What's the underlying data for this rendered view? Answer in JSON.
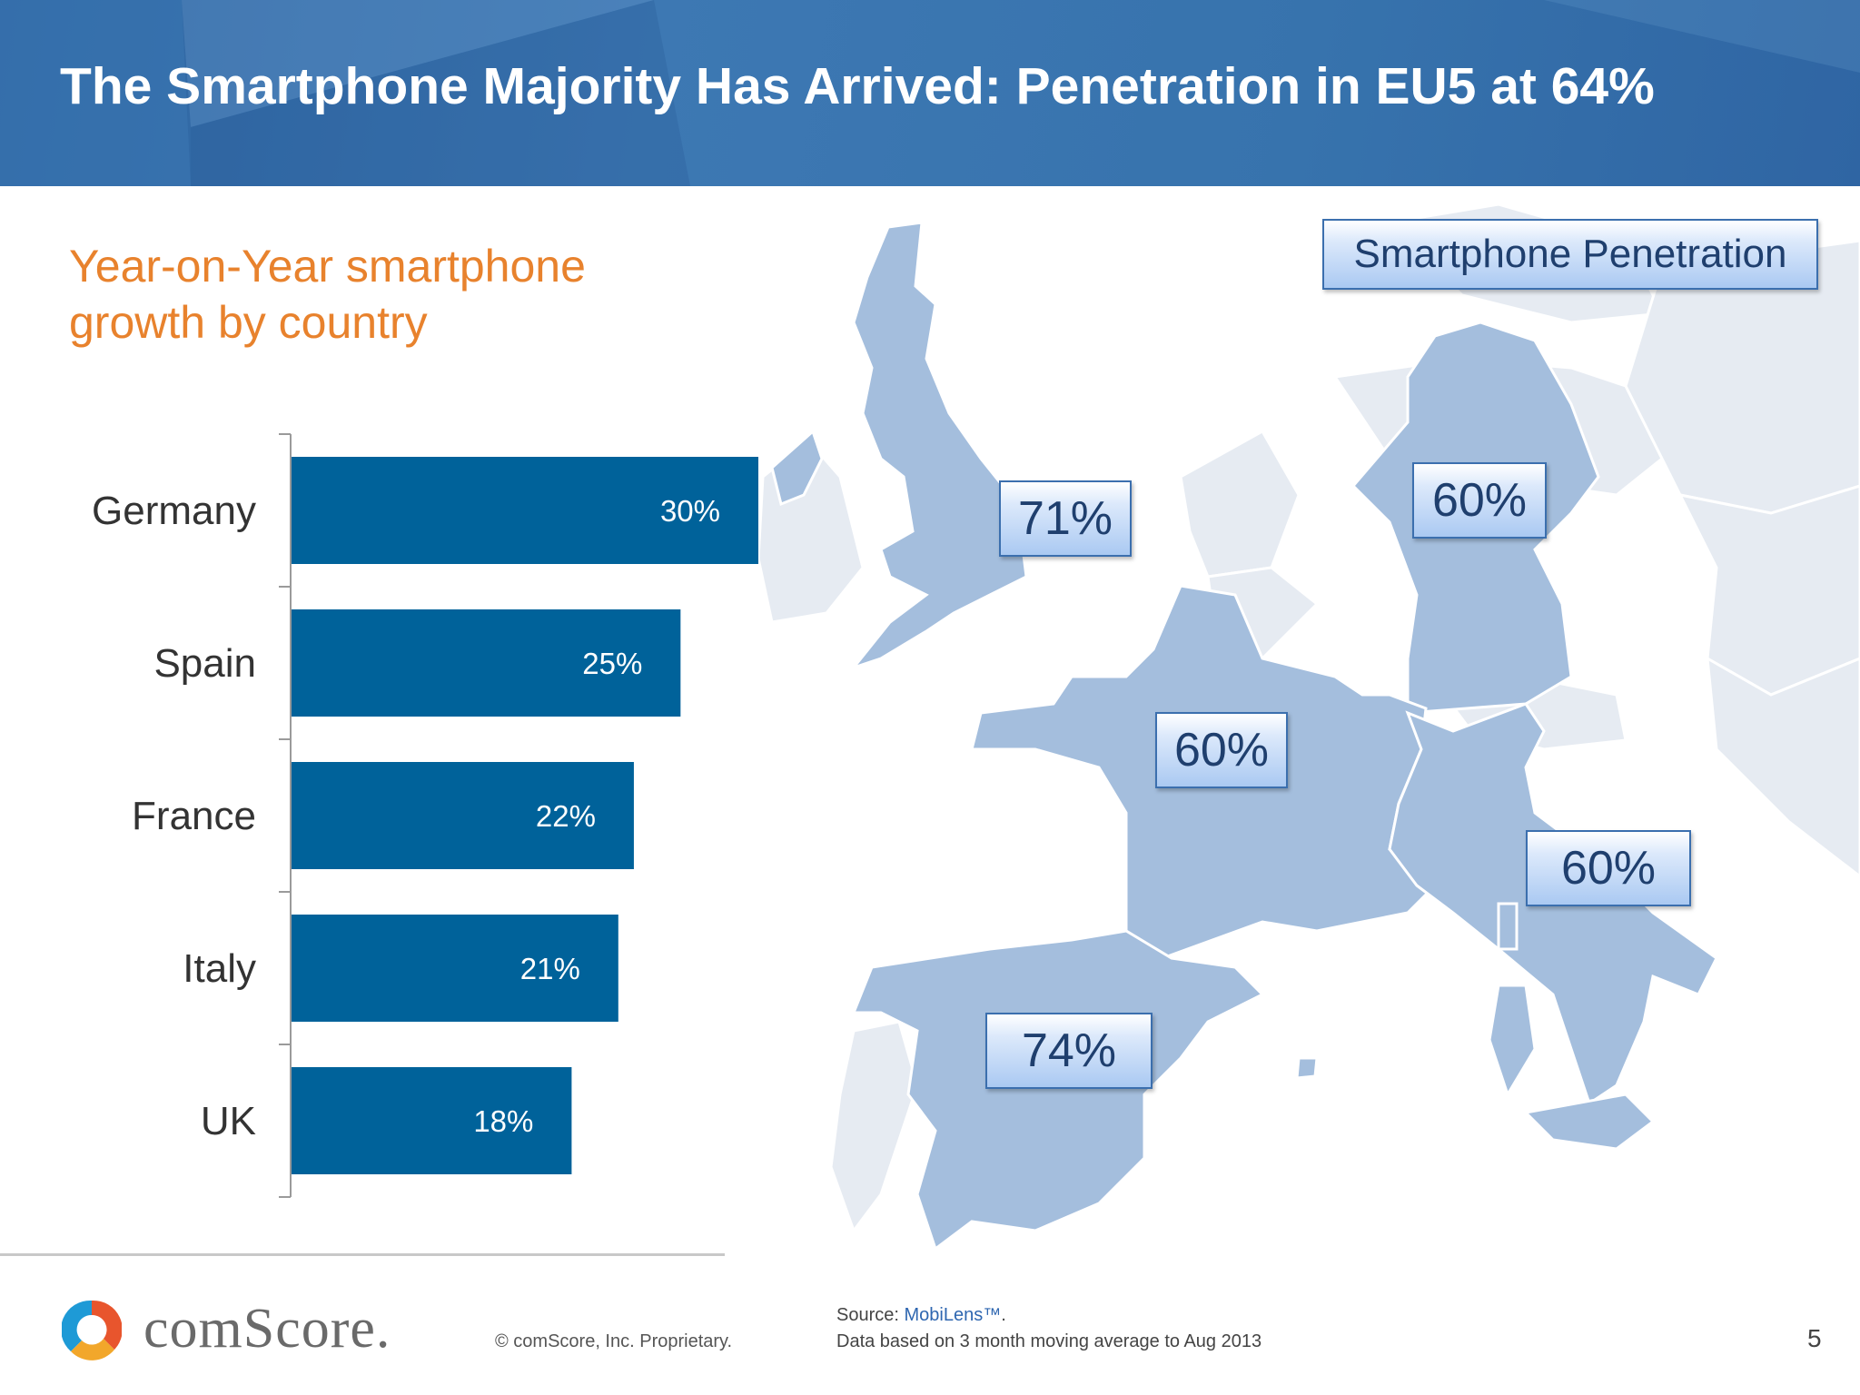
{
  "header": {
    "title": "The Smartphone Majority Has Arrived: Penetration in EU5 at 64%"
  },
  "chart_data": {
    "type": "bar",
    "orientation": "horizontal",
    "title": "Year-on-Year smartphone growth by country",
    "categories": [
      "Germany",
      "Spain",
      "France",
      "Italy",
      "UK"
    ],
    "values": [
      30,
      25,
      22,
      21,
      18
    ],
    "value_labels": [
      "30%",
      "25%",
      "22%",
      "21%",
      "18%"
    ],
    "xlim": [
      0,
      30
    ],
    "bar_color": "#00629a",
    "grid": false
  },
  "map": {
    "legend": "Smartphone Penetration",
    "labels": [
      {
        "country": "UK",
        "value": "71%"
      },
      {
        "country": "Germany",
        "value": "60%"
      },
      {
        "country": "France",
        "value": "60%"
      },
      {
        "country": "Italy",
        "value": "60%"
      },
      {
        "country": "Spain",
        "value": "74%"
      }
    ],
    "colors": {
      "eu5": "#a4bedd",
      "other": "#e6ebf2"
    }
  },
  "footer": {
    "logo_text": "comScore.",
    "copyright": "© comScore, Inc.    Proprietary.",
    "source_prefix": "Source: ",
    "source_link": "MobiLens™",
    "source_suffix": ".",
    "source_note": "Data based on 3 month moving average to Aug 2013",
    "page_number": "5"
  }
}
